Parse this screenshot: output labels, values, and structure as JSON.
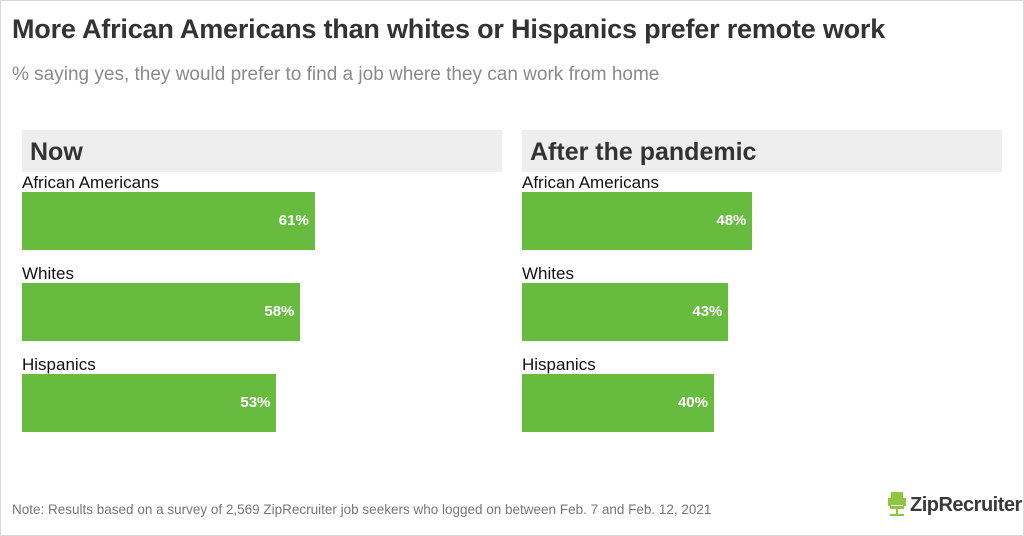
{
  "chart_data": {
    "type": "bar",
    "orientation": "horizontal",
    "title": "More African Americans than whites or Hispanics prefer remote work",
    "subtitle": "% saying yes, they would prefer to find a job where they can work from home",
    "xlim": [
      0,
      100
    ],
    "grid": false,
    "bar_color": "#67bb3f",
    "panels": [
      {
        "title": "Now",
        "categories": [
          "African Americans",
          "Whites",
          "Hispanics"
        ],
        "values": [
          61,
          58,
          53
        ],
        "labels": [
          "61%",
          "58%",
          "53%"
        ]
      },
      {
        "title": "After the pandemic",
        "categories": [
          "African Americans",
          "Whites",
          "Hispanics"
        ],
        "values": [
          48,
          43,
          40
        ],
        "labels": [
          "48%",
          "43%",
          "40%"
        ]
      }
    ],
    "note": "Note: Results based on a survey of 2,569 ZipRecruiter job seekers who logged on between Feb. 7 and Feb. 12, 2021"
  },
  "logo": {
    "text": "ZipRecruiter",
    "icon": "chair-icon",
    "color": "#8dc63f"
  }
}
